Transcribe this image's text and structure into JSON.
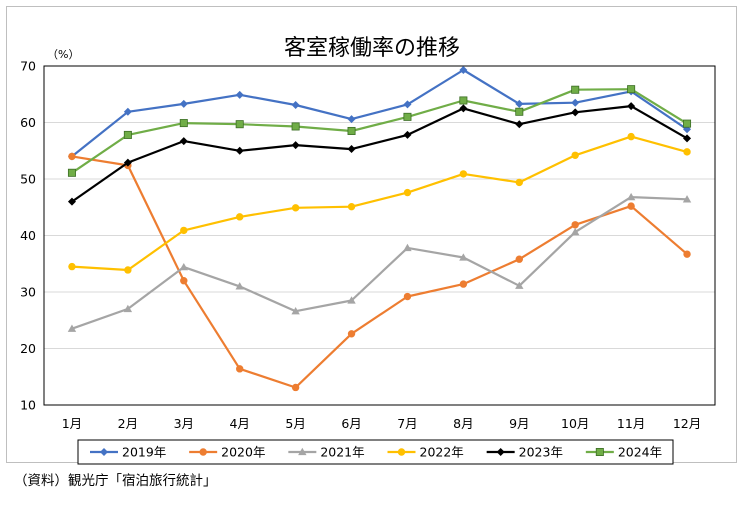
{
  "chart_data": {
    "type": "line",
    "title": "客室稼働率の推移",
    "unit_label": "（%）",
    "categories": [
      "1月",
      "2月",
      "3月",
      "4月",
      "5月",
      "6月",
      "7月",
      "8月",
      "9月",
      "10月",
      "11月",
      "12月"
    ],
    "ylim": [
      10,
      70
    ],
    "yticks": [
      10,
      20,
      30,
      40,
      50,
      60,
      70
    ],
    "grid": true,
    "legend_position": "bottom",
    "series": [
      {
        "name": "2019年",
        "color": "#4472C4",
        "marker": "diamond",
        "values": [
          54.0,
          61.9,
          63.3,
          64.9,
          63.1,
          60.6,
          63.2,
          69.3,
          63.3,
          63.5,
          65.5,
          58.8
        ]
      },
      {
        "name": "2020年",
        "color": "#ED7D31",
        "marker": "circle",
        "values": [
          54.0,
          52.4,
          32.0,
          16.4,
          13.1,
          22.6,
          29.2,
          31.4,
          35.8,
          41.9,
          45.2,
          36.7
        ]
      },
      {
        "name": "2021年",
        "color": "#A5A5A5",
        "marker": "triangle",
        "values": [
          23.5,
          27.0,
          34.4,
          31.0,
          26.6,
          28.5,
          37.8,
          36.1,
          31.1,
          40.6,
          46.8,
          46.4
        ]
      },
      {
        "name": "2022年",
        "color": "#FFC000",
        "marker": "circle",
        "values": [
          34.5,
          33.9,
          40.9,
          43.3,
          44.9,
          45.1,
          47.6,
          50.9,
          49.4,
          54.2,
          57.5,
          54.8
        ]
      },
      {
        "name": "2023年",
        "color": "#000000",
        "marker": "diamond",
        "values": [
          46.0,
          52.9,
          56.7,
          55.0,
          56.0,
          55.3,
          57.8,
          62.5,
          59.7,
          61.8,
          62.9,
          57.2
        ]
      },
      {
        "name": "2024年",
        "color": "#70AD47",
        "marker": "square",
        "values": [
          51.1,
          57.8,
          59.9,
          59.7,
          59.3,
          58.5,
          61.0,
          63.9,
          61.9,
          65.8,
          65.9,
          59.8
        ]
      }
    ]
  },
  "source": "（資料）観光庁「宿泊旅行統計」"
}
